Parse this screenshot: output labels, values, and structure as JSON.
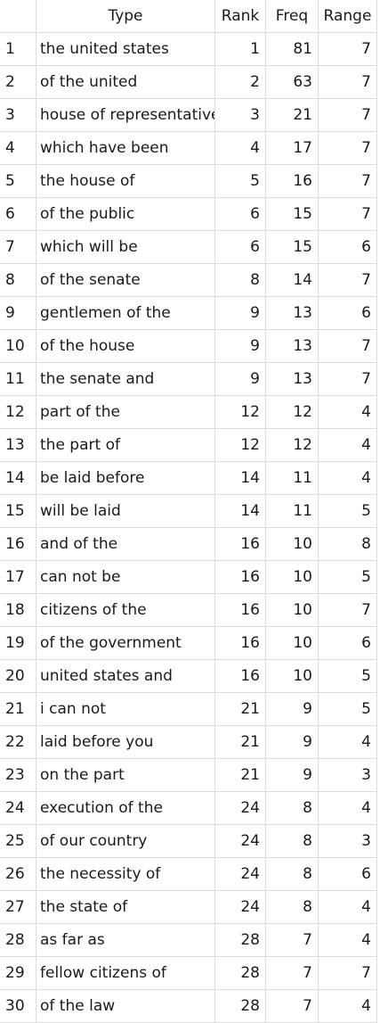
{
  "headers": {
    "row": "",
    "type": "Type",
    "rank": "Rank",
    "freq": "Freq",
    "range": "Range"
  },
  "rows": [
    {
      "n": "1",
      "type": "the united states",
      "rank": "1",
      "freq": "81",
      "range": "7"
    },
    {
      "n": "2",
      "type": "of the united",
      "rank": "2",
      "freq": "63",
      "range": "7"
    },
    {
      "n": "3",
      "type": "house of representatives",
      "rank": "3",
      "freq": "21",
      "range": "7"
    },
    {
      "n": "4",
      "type": "which have been",
      "rank": "4",
      "freq": "17",
      "range": "7"
    },
    {
      "n": "5",
      "type": "the house of",
      "rank": "5",
      "freq": "16",
      "range": "7"
    },
    {
      "n": "6",
      "type": "of the public",
      "rank": "6",
      "freq": "15",
      "range": "7"
    },
    {
      "n": "7",
      "type": "which will be",
      "rank": "6",
      "freq": "15",
      "range": "6"
    },
    {
      "n": "8",
      "type": "of the senate",
      "rank": "8",
      "freq": "14",
      "range": "7"
    },
    {
      "n": "9",
      "type": "gentlemen of the",
      "rank": "9",
      "freq": "13",
      "range": "6"
    },
    {
      "n": "10",
      "type": "of the house",
      "rank": "9",
      "freq": "13",
      "range": "7"
    },
    {
      "n": "11",
      "type": "the senate and",
      "rank": "9",
      "freq": "13",
      "range": "7"
    },
    {
      "n": "12",
      "type": "part of the",
      "rank": "12",
      "freq": "12",
      "range": "4"
    },
    {
      "n": "13",
      "type": "the part of",
      "rank": "12",
      "freq": "12",
      "range": "4"
    },
    {
      "n": "14",
      "type": "be laid before",
      "rank": "14",
      "freq": "11",
      "range": "4"
    },
    {
      "n": "15",
      "type": "will be laid",
      "rank": "14",
      "freq": "11",
      "range": "5"
    },
    {
      "n": "16",
      "type": "and of the",
      "rank": "16",
      "freq": "10",
      "range": "8"
    },
    {
      "n": "17",
      "type": "can not be",
      "rank": "16",
      "freq": "10",
      "range": "5"
    },
    {
      "n": "18",
      "type": "citizens of the",
      "rank": "16",
      "freq": "10",
      "range": "7"
    },
    {
      "n": "19",
      "type": "of the government",
      "rank": "16",
      "freq": "10",
      "range": "6"
    },
    {
      "n": "20",
      "type": "united states and",
      "rank": "16",
      "freq": "10",
      "range": "5"
    },
    {
      "n": "21",
      "type": "i can not",
      "rank": "21",
      "freq": "9",
      "range": "5"
    },
    {
      "n": "22",
      "type": "laid before you",
      "rank": "21",
      "freq": "9",
      "range": "4"
    },
    {
      "n": "23",
      "type": "on the part",
      "rank": "21",
      "freq": "9",
      "range": "3"
    },
    {
      "n": "24",
      "type": "execution of the",
      "rank": "24",
      "freq": "8",
      "range": "4"
    },
    {
      "n": "25",
      "type": "of our country",
      "rank": "24",
      "freq": "8",
      "range": "3"
    },
    {
      "n": "26",
      "type": "the necessity of",
      "rank": "24",
      "freq": "8",
      "range": "6"
    },
    {
      "n": "27",
      "type": "the state of",
      "rank": "24",
      "freq": "8",
      "range": "4"
    },
    {
      "n": "28",
      "type": "as far as",
      "rank": "28",
      "freq": "7",
      "range": "4"
    },
    {
      "n": "29",
      "type": "fellow citizens of",
      "rank": "28",
      "freq": "7",
      "range": "7"
    },
    {
      "n": "30",
      "type": "of the law",
      "rank": "28",
      "freq": "7",
      "range": "4"
    }
  ]
}
